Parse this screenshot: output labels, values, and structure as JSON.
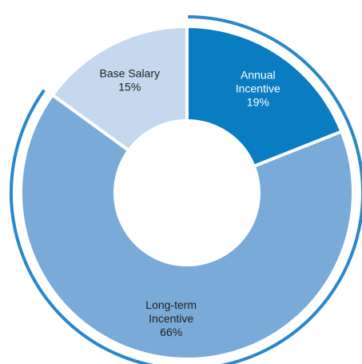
{
  "chart_data": {
    "type": "pie",
    "title": "",
    "categories": [
      "Annual Incentive",
      "Long-term Incentive",
      "Base Salary"
    ],
    "values": [
      19,
      66,
      15
    ],
    "labels": [
      {
        "lines": [
          "Annual",
          "Incentive"
        ],
        "pct": "19%"
      },
      {
        "lines": [
          "Long-term",
          "Incentive"
        ],
        "pct": "66%"
      },
      {
        "lines": [
          "Base Salary"
        ],
        "pct": "15%"
      }
    ],
    "colors": [
      "#0a7cc2",
      "#7aaad8",
      "#c5d8ee"
    ],
    "label_colors": [
      "#ffffff",
      "#222222",
      "#222222"
    ],
    "outer_ring": {
      "covers": [
        "Annual Incentive",
        "Long-term Incentive"
      ],
      "color": "#2b87c9"
    },
    "start_angle_deg": 0,
    "donut": true
  }
}
